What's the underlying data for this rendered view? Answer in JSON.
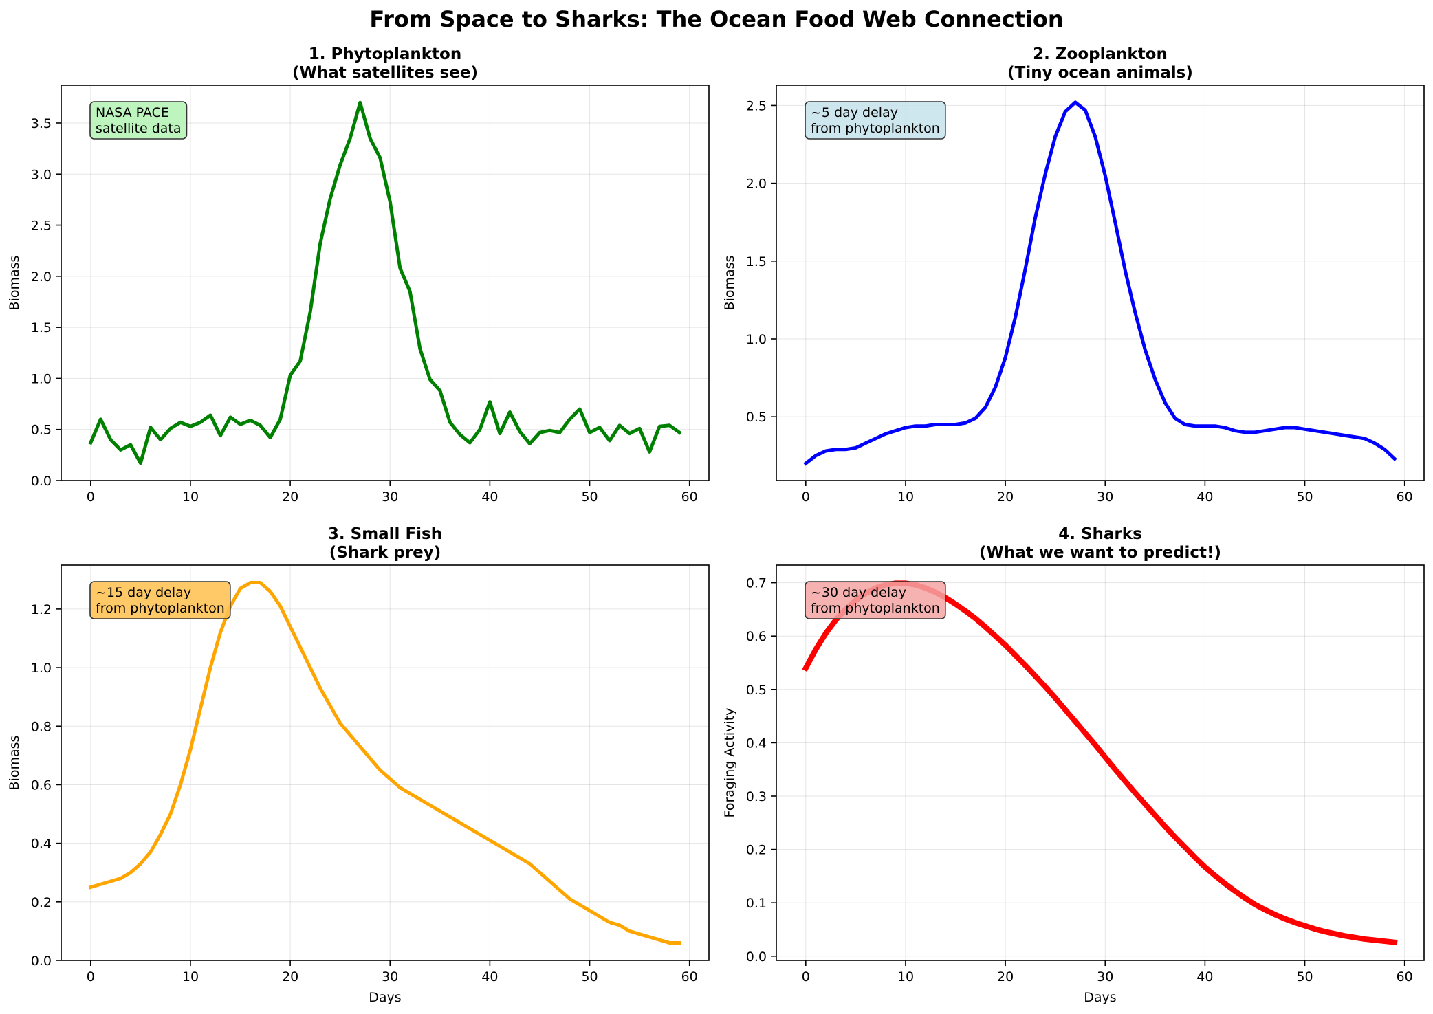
{
  "suptitle": "From Space to Sharks: The Ocean Food Web Connection",
  "chart_data": [
    {
      "type": "line",
      "title": "1. Phytoplankton",
      "subtitle": "(What satellites see)",
      "xlabel": "",
      "ylabel": "Biomass",
      "color": "#008000",
      "xlim": [
        -2.95,
        61.95
      ],
      "ylim": [
        0,
        3.87
      ],
      "xticks": [
        0,
        10,
        20,
        30,
        40,
        50,
        60
      ],
      "yticks": [
        0.0,
        0.5,
        1.0,
        1.5,
        2.0,
        2.5,
        3.0,
        3.5
      ],
      "ytick_decimals": 1,
      "grid": true,
      "annotation": {
        "lines": [
          "NASA PACE",
          "satellite data"
        ],
        "bg": "#b3f2b3"
      },
      "series": [
        {
          "x": [
            0,
            1,
            2,
            3,
            4,
            5,
            6,
            7,
            8,
            9,
            10,
            11,
            12,
            13,
            14,
            15,
            16,
            17,
            18,
            19,
            20,
            21,
            22,
            23,
            24,
            25,
            26,
            27,
            28,
            29,
            30,
            31,
            32,
            33,
            34,
            35,
            36,
            37,
            38,
            39,
            40,
            41,
            42,
            43,
            44,
            45,
            46,
            47,
            48,
            49,
            50,
            51,
            52,
            53,
            54,
            55,
            56,
            57,
            58,
            59
          ],
          "y": [
            0.37,
            0.6,
            0.4,
            0.3,
            0.35,
            0.17,
            0.52,
            0.4,
            0.51,
            0.57,
            0.53,
            0.57,
            0.64,
            0.44,
            0.62,
            0.55,
            0.59,
            0.54,
            0.42,
            0.6,
            1.03,
            1.17,
            1.65,
            2.32,
            2.76,
            3.09,
            3.35,
            3.7,
            3.35,
            3.16,
            2.73,
            2.08,
            1.85,
            1.29,
            0.99,
            0.88,
            0.57,
            0.45,
            0.37,
            0.5,
            0.77,
            0.46,
            0.67,
            0.48,
            0.36,
            0.47,
            0.49,
            0.47,
            0.6,
            0.7,
            0.47,
            0.52,
            0.39,
            0.54,
            0.46,
            0.51,
            0.28,
            0.53,
            0.54,
            0.47
          ]
        }
      ]
    },
    {
      "type": "line",
      "title": "2. Zooplankton",
      "subtitle": "(Tiny ocean animals)",
      "xlabel": "",
      "ylabel": "Biomass",
      "color": "#0000ff",
      "xlim": [
        -2.95,
        61.95
      ],
      "ylim": [
        0.09,
        2.63
      ],
      "xticks": [
        0,
        10,
        20,
        30,
        40,
        50,
        60
      ],
      "yticks": [
        0.5,
        1.0,
        1.5,
        2.0,
        2.5
      ],
      "ytick_decimals": 1,
      "grid": true,
      "annotation": {
        "lines": [
          "~5 day delay",
          "from phytoplankton"
        ],
        "bg": "#c5e3ec"
      },
      "series": [
        {
          "x": [
            0,
            1,
            2,
            3,
            4,
            5,
            6,
            7,
            8,
            9,
            10,
            11,
            12,
            13,
            14,
            15,
            16,
            17,
            18,
            19,
            20,
            21,
            22,
            23,
            24,
            25,
            26,
            27,
            28,
            29,
            30,
            31,
            32,
            33,
            34,
            35,
            36,
            37,
            38,
            39,
            40,
            41,
            42,
            43,
            44,
            45,
            46,
            47,
            48,
            49,
            50,
            51,
            52,
            53,
            54,
            55,
            56,
            57,
            58,
            59
          ],
          "y": [
            0.2,
            0.25,
            0.28,
            0.29,
            0.29,
            0.3,
            0.33,
            0.36,
            0.39,
            0.41,
            0.43,
            0.44,
            0.44,
            0.45,
            0.45,
            0.45,
            0.46,
            0.49,
            0.56,
            0.69,
            0.88,
            1.14,
            1.45,
            1.78,
            2.06,
            2.3,
            2.46,
            2.52,
            2.47,
            2.3,
            2.05,
            1.75,
            1.44,
            1.17,
            0.93,
            0.74,
            0.59,
            0.49,
            0.45,
            0.44,
            0.44,
            0.44,
            0.43,
            0.41,
            0.4,
            0.4,
            0.41,
            0.42,
            0.43,
            0.43,
            0.42,
            0.41,
            0.4,
            0.39,
            0.38,
            0.37,
            0.36,
            0.33,
            0.29,
            0.23
          ]
        }
      ]
    },
    {
      "type": "line",
      "title": "3. Small Fish",
      "subtitle": "(Shark prey)",
      "xlabel": "Days",
      "ylabel": "Biomass",
      "color": "#ffa500",
      "xlim": [
        -2.95,
        61.95
      ],
      "ylim": [
        0,
        1.35
      ],
      "xticks": [
        0,
        10,
        20,
        30,
        40,
        50,
        60
      ],
      "yticks": [
        0.0,
        0.2,
        0.4,
        0.6,
        0.8,
        1.0,
        1.2
      ],
      "ytick_decimals": 1,
      "grid": true,
      "annotation": {
        "lines": [
          "~15 day delay",
          "from phytoplankton"
        ],
        "bg": "#ffbf4d"
      },
      "series": [
        {
          "x": [
            0,
            1,
            2,
            3,
            4,
            5,
            6,
            7,
            8,
            9,
            10,
            11,
            12,
            13,
            14,
            15,
            16,
            17,
            18,
            19,
            20,
            21,
            22,
            23,
            24,
            25,
            26,
            27,
            28,
            29,
            30,
            31,
            32,
            33,
            34,
            35,
            36,
            37,
            38,
            39,
            40,
            41,
            42,
            43,
            44,
            45,
            46,
            47,
            48,
            49,
            50,
            51,
            52,
            53,
            54,
            55,
            56,
            57,
            58,
            59
          ],
          "y": [
            0.25,
            0.26,
            0.27,
            0.28,
            0.3,
            0.33,
            0.37,
            0.43,
            0.5,
            0.6,
            0.72,
            0.86,
            1.0,
            1.12,
            1.21,
            1.27,
            1.29,
            1.29,
            1.26,
            1.21,
            1.14,
            1.07,
            1.0,
            0.93,
            0.87,
            0.81,
            0.77,
            0.73,
            0.69,
            0.65,
            0.62,
            0.59,
            0.57,
            0.55,
            0.53,
            0.51,
            0.49,
            0.47,
            0.45,
            0.43,
            0.41,
            0.39,
            0.37,
            0.35,
            0.33,
            0.3,
            0.27,
            0.24,
            0.21,
            0.19,
            0.17,
            0.15,
            0.13,
            0.12,
            0.1,
            0.09,
            0.08,
            0.07,
            0.06,
            0.06
          ]
        }
      ]
    },
    {
      "type": "line",
      "title": "4. Sharks",
      "subtitle": "(What we want to predict!)",
      "xlabel": "Days",
      "ylabel": "Foraging Activity",
      "color": "#ff0000",
      "xlim": [
        -2.95,
        61.95
      ],
      "ylim": [
        -0.008,
        0.733
      ],
      "xticks": [
        0,
        10,
        20,
        30,
        40,
        50,
        60
      ],
      "yticks": [
        0.0,
        0.1,
        0.2,
        0.3,
        0.4,
        0.5,
        0.6,
        0.7
      ],
      "ytick_decimals": 1,
      "grid": true,
      "annotation": {
        "lines": [
          "~30 day delay",
          "from phytoplankton"
        ],
        "bg": "#f5a3a3"
      },
      "series": [
        {
          "x": [
            0,
            1,
            2,
            3,
            4,
            5,
            6,
            7,
            8,
            9,
            10,
            11,
            12,
            13,
            14,
            15,
            16,
            17,
            18,
            19,
            20,
            21,
            22,
            23,
            24,
            25,
            26,
            27,
            28,
            29,
            30,
            31,
            32,
            33,
            34,
            35,
            36,
            37,
            38,
            39,
            40,
            41,
            42,
            43,
            44,
            45,
            46,
            47,
            48,
            49,
            50,
            51,
            52,
            53,
            54,
            55,
            56,
            57,
            58,
            59
          ],
          "y": [
            0.54,
            0.575,
            0.605,
            0.63,
            0.65,
            0.667,
            0.68,
            0.69,
            0.696,
            0.699,
            0.699,
            0.696,
            0.69,
            0.682,
            0.672,
            0.66,
            0.647,
            0.633,
            0.617,
            0.6,
            0.583,
            0.564,
            0.545,
            0.525,
            0.505,
            0.484,
            0.462,
            0.44,
            0.418,
            0.396,
            0.373,
            0.35,
            0.328,
            0.306,
            0.285,
            0.264,
            0.243,
            0.223,
            0.204,
            0.185,
            0.167,
            0.151,
            0.136,
            0.122,
            0.109,
            0.097,
            0.087,
            0.078,
            0.07,
            0.063,
            0.057,
            0.051,
            0.046,
            0.042,
            0.038,
            0.035,
            0.032,
            0.03,
            0.028,
            0.026
          ]
        }
      ]
    }
  ]
}
